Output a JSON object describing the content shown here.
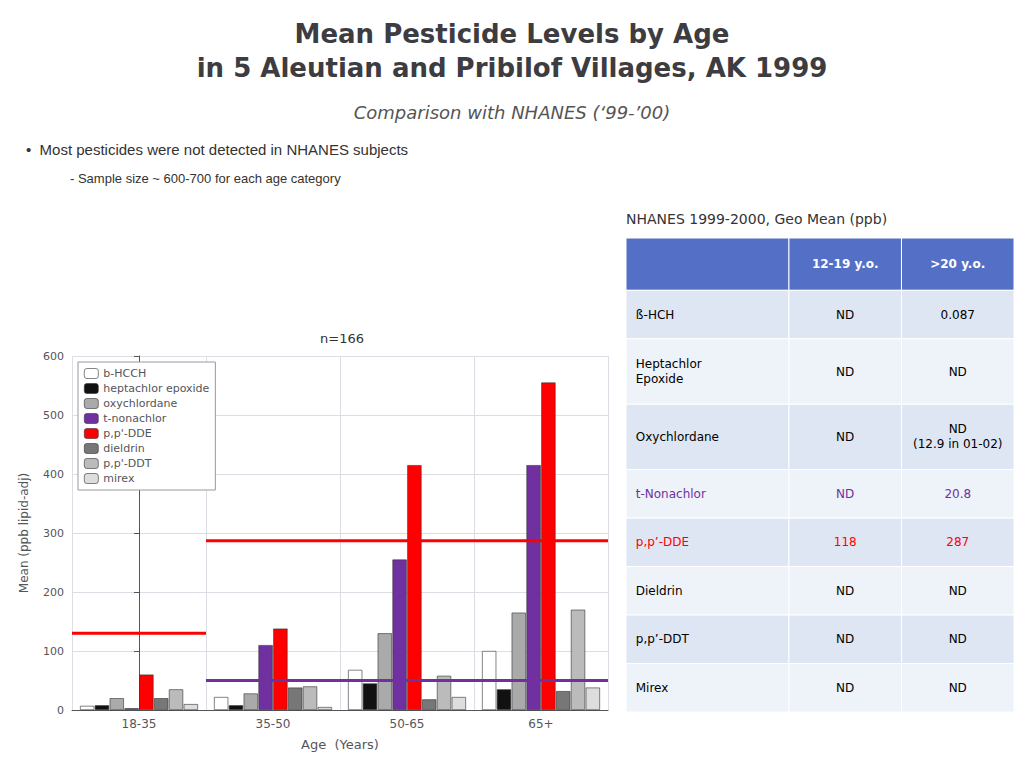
{
  "title": [
    "Mean Pesticide Levels by Age",
    "in 5 Aleutian and Pribilof Villages, AK 1999"
  ],
  "subtitle": "Comparison with NHANES (‘99-’00)",
  "annotations": [
    "•  Most pesticides were not detected in NHANES subjects",
    "- Sample size ~ 600-700 for each age category"
  ],
  "chart_data": {
    "type": "bar",
    "title": "n=166",
    "categories": [
      "18-35",
      "35-50",
      "50-65",
      "65+"
    ],
    "xlabel": "Age  (Years)",
    "ylabel": "Mean (ppb lipid-adj)",
    "ylim": [
      0,
      600
    ],
    "yticks": [
      0,
      100,
      200,
      300,
      400,
      500,
      600
    ],
    "grid": true,
    "legend": "upper left",
    "series": [
      {
        "name": "b-HCCH",
        "color": "#ffffff",
        "values": [
          7,
          22,
          68,
          100
        ]
      },
      {
        "name": "heptachlor epoxide",
        "color": "#111111",
        "values": [
          8,
          8,
          45,
          35
        ]
      },
      {
        "name": "oxychlordane",
        "color": "#aaaaaa",
        "values": [
          20,
          28,
          130,
          165
        ]
      },
      {
        "name": "t-nonachlor",
        "color": "#7030a0",
        "values": [
          3,
          110,
          255,
          415
        ]
      },
      {
        "name": "p,p'-DDE",
        "color": "#ff0000",
        "values": [
          60,
          138,
          415,
          555
        ]
      },
      {
        "name": "dieldrin",
        "color": "#777777",
        "values": [
          20,
          38,
          18,
          32
        ]
      },
      {
        "name": "p,p'-DDT",
        "color": "#bbbbbb",
        "values": [
          35,
          40,
          58,
          170
        ]
      },
      {
        "name": "mirex",
        "color": "#dddddd",
        "values": [
          10,
          5,
          22,
          38
        ]
      }
    ],
    "reference_lines": [
      {
        "value": 130,
        "color": "#ff0000",
        "categories": [
          "18-35"
        ]
      },
      {
        "value": 50,
        "color": "#7030a0",
        "categories": [
          "35-50",
          "50-65",
          "65+"
        ]
      },
      {
        "value": 287,
        "color": "#ff0000",
        "categories": [
          "35-50",
          "50-65",
          "65+"
        ]
      }
    ]
  },
  "table": {
    "title": "NHANES 1999-2000, Geo Mean (ppb)",
    "columns": [
      "12-19 y.o.",
      ">20 y.o."
    ],
    "rows": [
      {
        "cells": [
          "ß-HCH",
          "ND",
          "0.087"
        ],
        "color": "#000000"
      },
      {
        "cells": [
          "Heptachlor\nEpoxide",
          "ND",
          "ND"
        ],
        "color": "#000000"
      },
      {
        "cells": [
          "Oxychlordane",
          "ND",
          "ND\n(12.9 in 01-02)"
        ],
        "color": "#000000"
      },
      {
        "cells": [
          "t-Nonachlor",
          "ND",
          "20.8"
        ],
        "color": "#7030a0"
      },
      {
        "cells": [
          "p,p’-DDE",
          "118",
          "287"
        ],
        "color": "#ff0000"
      },
      {
        "cells": [
          "Dieldrin",
          "ND",
          "ND"
        ],
        "color": "#000000"
      },
      {
        "cells": [
          "p,p’-DDT",
          "ND",
          "ND"
        ],
        "color": "#000000"
      },
      {
        "cells": [
          "Mirex",
          "ND",
          "ND"
        ],
        "color": "#000000"
      }
    ]
  }
}
